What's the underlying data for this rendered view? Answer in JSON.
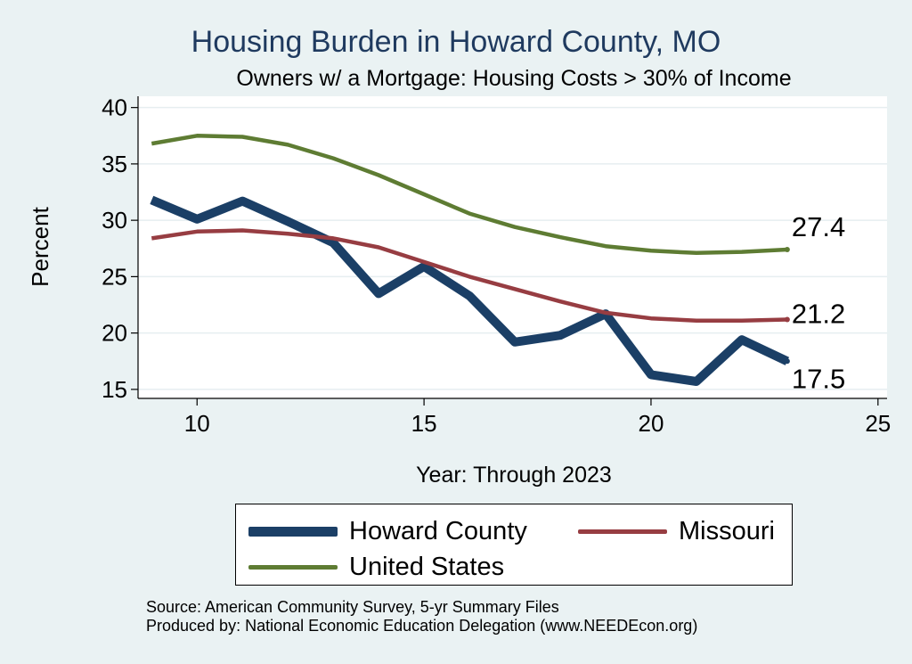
{
  "chart_data": {
    "type": "line",
    "title": "Housing Burden in Howard County, MO",
    "subtitle": "Owners w/ a Mortgage: Housing Costs > 30% of Income",
    "xlabel": "Year: Through 2023",
    "ylabel": "Percent",
    "xlim": [
      8.7,
      25.2
    ],
    "ylim": [
      14.2,
      41
    ],
    "xticks": [
      10,
      15,
      20,
      25
    ],
    "yticks": [
      15,
      20,
      25,
      30,
      35,
      40
    ],
    "grid": true,
    "series": [
      {
        "name": "Howard County",
        "color": "#1b3f66",
        "x": [
          9,
          10,
          11,
          12,
          13,
          14,
          15,
          16,
          17,
          18,
          19,
          20,
          21,
          22,
          23
        ],
        "values": [
          31.8,
          30.1,
          31.7,
          29.9,
          28.0,
          23.5,
          25.9,
          23.3,
          19.2,
          19.8,
          21.7,
          16.3,
          15.7,
          19.4,
          17.5
        ],
        "end_label": "17.5"
      },
      {
        "name": "Missouri",
        "color": "#973d42",
        "x": [
          9,
          10,
          11,
          12,
          13,
          14,
          15,
          16,
          17,
          18,
          19,
          20,
          21,
          22,
          23
        ],
        "values": [
          28.4,
          29.0,
          29.1,
          28.8,
          28.4,
          27.6,
          26.3,
          25.0,
          23.9,
          22.8,
          21.8,
          21.3,
          21.1,
          21.1,
          21.2
        ],
        "end_label": "21.2"
      },
      {
        "name": "United States",
        "color": "#5e7c33",
        "x": [
          9,
          10,
          11,
          12,
          13,
          14,
          15,
          16,
          17,
          18,
          19,
          20,
          21,
          22,
          23
        ],
        "values": [
          36.8,
          37.5,
          37.4,
          36.7,
          35.5,
          34.0,
          32.3,
          30.6,
          29.4,
          28.5,
          27.7,
          27.3,
          27.1,
          27.2,
          27.4
        ],
        "end_label": "27.4"
      }
    ],
    "legend": {
      "position": "bottom",
      "items": [
        "Howard County",
        "Missouri",
        "United States"
      ]
    }
  },
  "source": {
    "line1": "Source: American Community Survey, 5-yr Summary Files",
    "line2": "Produced by: National Economic Education Delegation (www.NEEDEcon.org)"
  }
}
